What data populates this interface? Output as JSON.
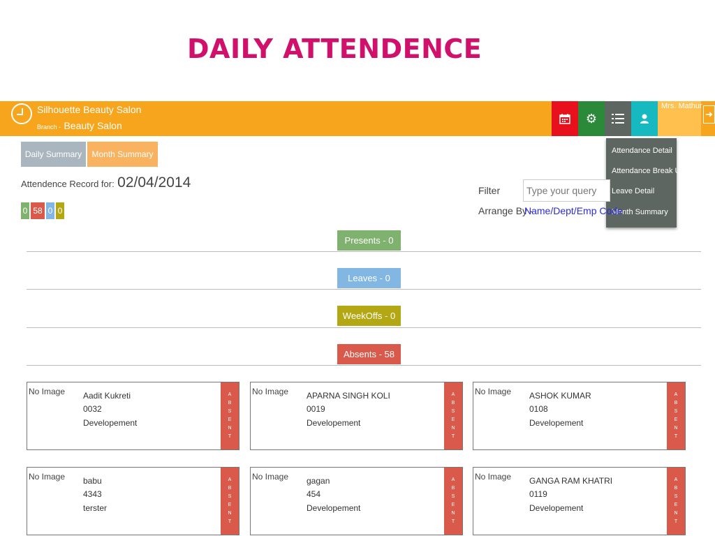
{
  "slide_title": "DAILY ATTENDENCE",
  "header": {
    "salon_name": "Silhouette Beauty Salon",
    "branch_label": "Branch -",
    "branch_value": "Beauty Salon",
    "profile_name": "Mrs. Mathur",
    "bar_color": "#f7a51c",
    "icons": [
      "clock-icon",
      "calendar-icon",
      "settings-icon",
      "list-icon",
      "user-icon",
      "logout-icon"
    ]
  },
  "dropdown": {
    "items": [
      "Attendance Detail",
      "Attendance Break Up",
      "Leave Detail",
      "Month Summary"
    ]
  },
  "summary_buttons": {
    "daily": "Daily Summary",
    "month": "Month Summary"
  },
  "record": {
    "label": "Attendence Record for:",
    "date": "02/04/2014"
  },
  "counts": {
    "present": "0",
    "absent": "58",
    "leave": "0",
    "weekoff": "0"
  },
  "filter": {
    "label": "Filter",
    "placeholder": "Type your query",
    "arrange_label": "Arrange By -",
    "arrange_link": "Name/Dept/Emp Code"
  },
  "sections": {
    "presents": "Presents - 0",
    "leaves": "Leaves - 0",
    "weekoffs": "WeekOffs - 0",
    "absents": "Absents - 58"
  },
  "employees": [
    {
      "no_image": "No Image",
      "name": "Aadit Kukreti",
      "code": "0032",
      "dept": "Developement",
      "status": "ABSENT"
    },
    {
      "no_image": "No Image",
      "name": "APARNA SINGH KOLI",
      "code": "0019",
      "dept": "Developement",
      "status": "ABSENT"
    },
    {
      "no_image": "No Image",
      "name": "ASHOK KUMAR",
      "code": "0108",
      "dept": "Developement",
      "status": "ABSENT"
    },
    {
      "no_image": "No Image",
      "name": "babu",
      "code": "4343",
      "dept": "terster",
      "status": "ABSENT"
    },
    {
      "no_image": "No Image",
      "name": "gagan",
      "code": "454",
      "dept": "Developement",
      "status": "ABSENT"
    },
    {
      "no_image": "No Image",
      "name": "GANGA RAM KHATRI",
      "code": "0119",
      "dept": "Developement",
      "status": "ABSENT"
    }
  ]
}
